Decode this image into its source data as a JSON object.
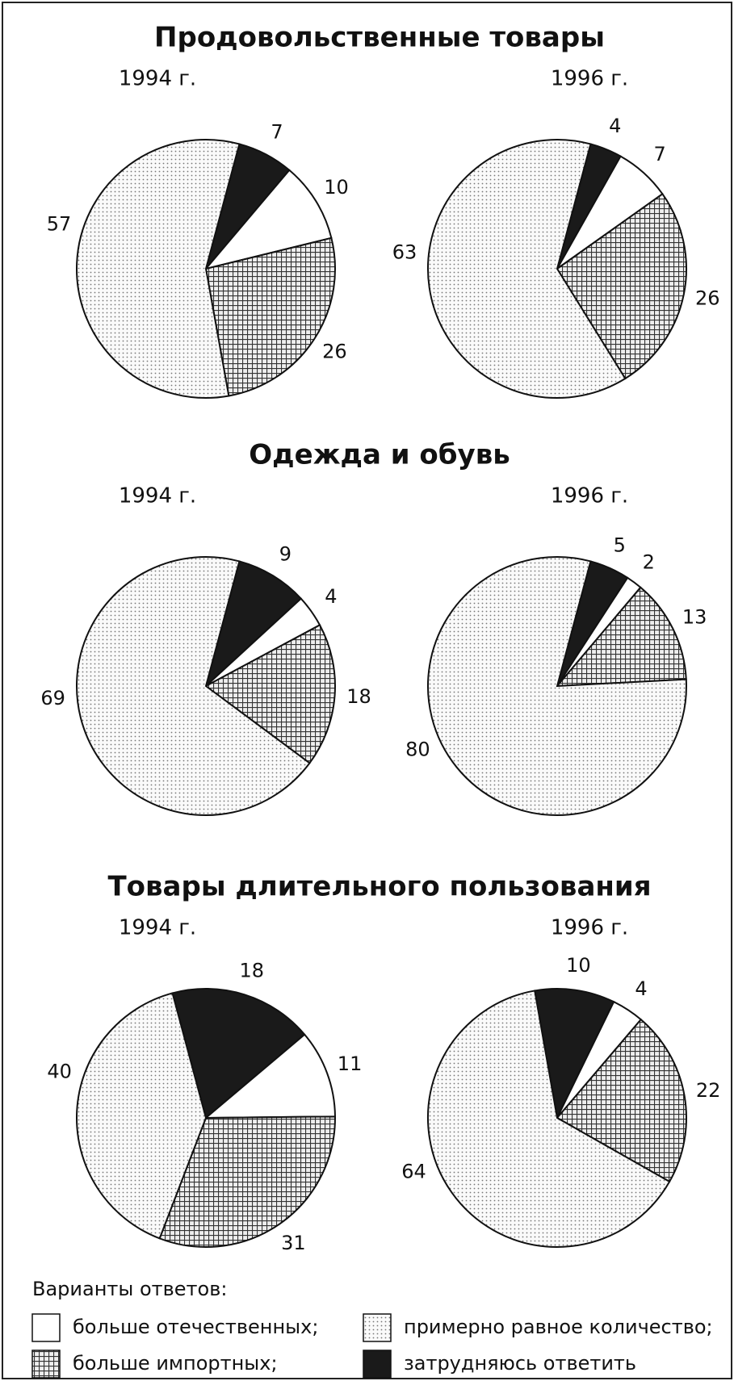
{
  "group_titles": [
    "Продовольственные товары",
    "Одежда и обувь",
    "Товары длительного пользования"
  ],
  "legend_title": "Варианты ответов:",
  "categories": [
    "больше отечественных;",
    "примерно равное количество;",
    "больше импортных;",
    "затрудняюсь ответить"
  ],
  "chart_data": [
    {
      "type": "pie",
      "title": "1994 г.",
      "values": [
        10,
        57,
        26,
        7
      ]
    },
    {
      "type": "pie",
      "title": "1996 г.",
      "values": [
        7,
        63,
        26,
        4
      ]
    },
    {
      "type": "pie",
      "title": "1994 г.",
      "values": [
        4,
        69,
        18,
        9
      ]
    },
    {
      "type": "pie",
      "title": "1996 г.",
      "values": [
        2,
        80,
        13,
        5
      ]
    },
    {
      "type": "pie",
      "title": "1994 г.",
      "values": [
        11,
        40,
        31,
        18
      ]
    },
    {
      "type": "pie",
      "title": "1996 г.",
      "values": [
        4,
        64,
        22,
        10
      ]
    }
  ]
}
